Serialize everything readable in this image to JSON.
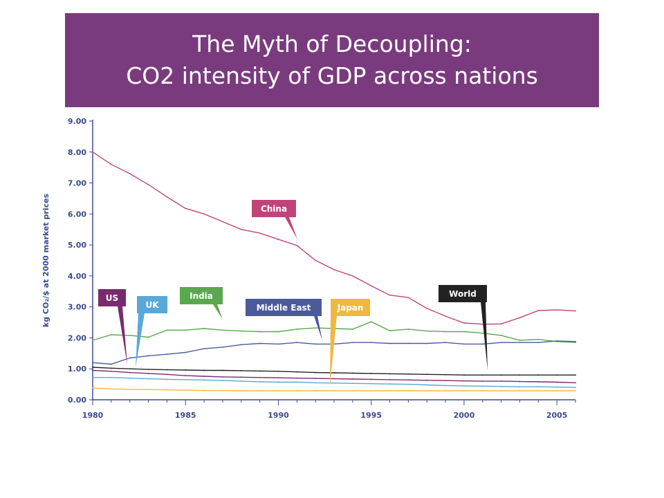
{
  "title": {
    "line1": "The Myth of Decoupling:",
    "line2": "CO2 intensity of GDP across nations"
  },
  "chart_data": {
    "type": "line",
    "ylabel": "kg CO₂/$ at 2000 market prices",
    "ylim": [
      0,
      9
    ],
    "yticks": [
      "0.00",
      "1.00",
      "2.00",
      "3.00",
      "4.00",
      "5.00",
      "6.00",
      "7.00",
      "8.00",
      "9.00"
    ],
    "xlim": [
      1980,
      2006
    ],
    "xticks": [
      1980,
      1985,
      1990,
      1995,
      2000,
      2005
    ],
    "x": [
      1980,
      1981,
      1982,
      1983,
      1984,
      1985,
      1986,
      1987,
      1988,
      1989,
      1990,
      1991,
      1992,
      1993,
      1994,
      1995,
      1996,
      1997,
      1998,
      1999,
      2000,
      2001,
      2002,
      2003,
      2004,
      2005,
      2006
    ],
    "series": [
      {
        "name": "China",
        "color": "#c0447a",
        "values": [
          8.0,
          7.6,
          7.3,
          6.95,
          6.55,
          6.18,
          6.0,
          5.75,
          5.5,
          5.38,
          5.18,
          4.98,
          4.5,
          4.2,
          4.0,
          3.68,
          3.38,
          3.3,
          2.95,
          2.7,
          2.48,
          2.44,
          2.45,
          2.65,
          2.88,
          2.9,
          2.87
        ]
      },
      {
        "name": "India",
        "color": "#5aa84e",
        "values": [
          1.92,
          2.1,
          2.08,
          2.02,
          2.25,
          2.25,
          2.3,
          2.25,
          2.22,
          2.2,
          2.2,
          2.28,
          2.32,
          2.3,
          2.28,
          2.52,
          2.23,
          2.28,
          2.22,
          2.2,
          2.2,
          2.15,
          2.08,
          1.92,
          1.95,
          1.88,
          1.85
        ]
      },
      {
        "name": "Middle East",
        "color": "#4a5a9a",
        "values": [
          1.2,
          1.15,
          1.35,
          1.42,
          1.47,
          1.53,
          1.65,
          1.7,
          1.78,
          1.82,
          1.8,
          1.85,
          1.8,
          1.8,
          1.85,
          1.85,
          1.82,
          1.82,
          1.82,
          1.85,
          1.8,
          1.8,
          1.85,
          1.85,
          1.85,
          1.9,
          1.88
        ]
      },
      {
        "name": "World",
        "color": "#222222",
        "values": [
          1.05,
          1.02,
          1.0,
          0.98,
          0.97,
          0.96,
          0.95,
          0.95,
          0.94,
          0.93,
          0.92,
          0.9,
          0.88,
          0.87,
          0.86,
          0.85,
          0.84,
          0.83,
          0.82,
          0.81,
          0.8,
          0.8,
          0.8,
          0.8,
          0.8,
          0.8,
          0.8
        ]
      },
      {
        "name": "US",
        "color": "#7a2a6e",
        "values": [
          0.95,
          0.92,
          0.88,
          0.85,
          0.82,
          0.78,
          0.76,
          0.74,
          0.73,
          0.72,
          0.71,
          0.7,
          0.69,
          0.68,
          0.67,
          0.66,
          0.65,
          0.64,
          0.63,
          0.62,
          0.61,
          0.6,
          0.6,
          0.59,
          0.58,
          0.57,
          0.55
        ]
      },
      {
        "name": "UK",
        "color": "#5aa8d8",
        "values": [
          0.72,
          0.72,
          0.7,
          0.68,
          0.66,
          0.65,
          0.64,
          0.62,
          0.6,
          0.58,
          0.57,
          0.57,
          0.55,
          0.54,
          0.53,
          0.52,
          0.51,
          0.5,
          0.48,
          0.46,
          0.45,
          0.44,
          0.43,
          0.42,
          0.42,
          0.41,
          0.4
        ]
      },
      {
        "name": "Japan",
        "color": "#f0b840",
        "values": [
          0.38,
          0.35,
          0.34,
          0.33,
          0.32,
          0.31,
          0.3,
          0.3,
          0.29,
          0.29,
          0.29,
          0.29,
          0.29,
          0.29,
          0.29,
          0.29,
          0.29,
          0.29,
          0.29,
          0.29,
          0.29,
          0.29,
          0.29,
          0.29,
          0.29,
          0.29,
          0.29
        ]
      }
    ],
    "callouts": [
      {
        "label": "China",
        "color": "#c0447a"
      },
      {
        "label": "US",
        "color": "#7a2a6e"
      },
      {
        "label": "UK",
        "color": "#5aa8d8"
      },
      {
        "label": "India",
        "color": "#5aa84e"
      },
      {
        "label": "Middle East",
        "color": "#4a5a9a"
      },
      {
        "label": "Japan",
        "color": "#f0b840"
      },
      {
        "label": "World",
        "color": "#222222"
      }
    ]
  }
}
